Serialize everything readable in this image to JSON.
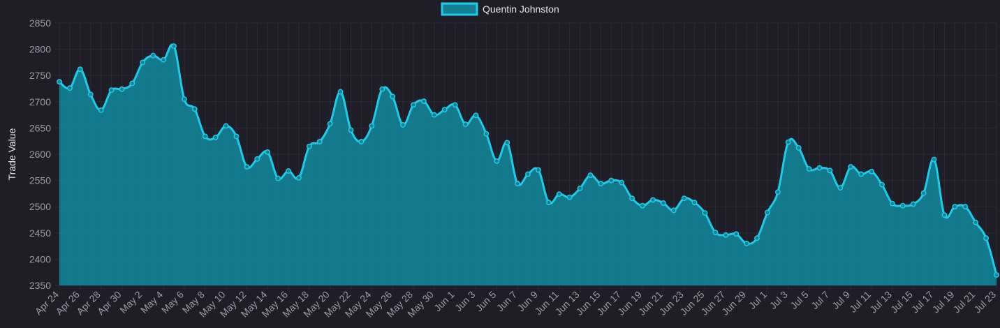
{
  "chart_data": {
    "type": "area",
    "ylabel": "Trade Value",
    "ylim": [
      2350,
      2850
    ],
    "yticks": [
      2350,
      2400,
      2450,
      2500,
      2550,
      2600,
      2650,
      2700,
      2750,
      2800,
      2850
    ],
    "grid": true,
    "legend_position": "top-center",
    "colors": {
      "line": "#1ecbe8",
      "fill": "#137f93",
      "background": "#1f1e27",
      "grid": "#2c2b35"
    },
    "x": [
      "Apr 24",
      "Apr 25",
      "Apr 26",
      "Apr 27",
      "Apr 28",
      "Apr 29",
      "Apr 30",
      "May 1",
      "May 2",
      "May 3",
      "May 4",
      "May 5",
      "May 6",
      "May 7",
      "May 8",
      "May 9",
      "May 10",
      "May 11",
      "May 12",
      "May 13",
      "May 14",
      "May 15",
      "May 16",
      "May 17",
      "May 18",
      "May 19",
      "May 20",
      "May 21",
      "May 22",
      "May 23",
      "May 24",
      "May 25",
      "May 26",
      "May 27",
      "May 28",
      "May 29",
      "May 30",
      "May 31",
      "Jun 1",
      "Jun 2",
      "Jun 3",
      "Jun 4",
      "Jun 5",
      "Jun 6",
      "Jun 7",
      "Jun 8",
      "Jun 9",
      "Jun 10",
      "Jun 11",
      "Jun 12",
      "Jun 13",
      "Jun 14",
      "Jun 15",
      "Jun 16",
      "Jun 17",
      "Jun 18",
      "Jun 19",
      "Jun 20",
      "Jun 21",
      "Jun 22",
      "Jun 23",
      "Jun 24",
      "Jun 25",
      "Jun 26",
      "Jun 27",
      "Jun 28",
      "Jun 29",
      "Jun 30",
      "Jul 1",
      "Jul 2",
      "Jul 3",
      "Jul 4",
      "Jul 5",
      "Jul 6",
      "Jul 7",
      "Jul 8",
      "Jul 9",
      "Jul 10",
      "Jul 11",
      "Jul 12",
      "Jul 13",
      "Jul 14",
      "Jul 15",
      "Jul 16",
      "Jul 17",
      "Jul 18",
      "Jul 19",
      "Jul 20",
      "Jul 21",
      "Jul 22",
      "Jul 23"
    ],
    "xtick_labels": [
      "Apr 24",
      "Apr 26",
      "Apr 28",
      "Apr 30",
      "May 2",
      "May 4",
      "May 6",
      "May 8",
      "May 10",
      "May 12",
      "May 14",
      "May 16",
      "May 18",
      "May 20",
      "May 22",
      "May 24",
      "May 26",
      "May 28",
      "May 30",
      "Jun 1",
      "Jun 3",
      "Jun 5",
      "Jun 7",
      "Jun 9",
      "Jun 11",
      "Jun 13",
      "Jun 15",
      "Jun 17",
      "Jun 19",
      "Jun 21",
      "Jun 23",
      "Jun 25",
      "Jun 27",
      "Jun 29",
      "Jul 1",
      "Jul 3",
      "Jul 5",
      "Jul 7",
      "Jul 9",
      "Jul 11",
      "Jul 13",
      "Jul 15",
      "Jul 17",
      "Jul 19",
      "Jul 21",
      "Jul 23"
    ],
    "series": [
      {
        "name": "Quentin Johnston",
        "values": [
          2738,
          2726,
          2762,
          2714,
          2684,
          2722,
          2724,
          2735,
          2775,
          2788,
          2780,
          2806,
          2705,
          2686,
          2634,
          2632,
          2654,
          2634,
          2576,
          2591,
          2604,
          2554,
          2568,
          2555,
          2615,
          2624,
          2658,
          2719,
          2646,
          2624,
          2654,
          2724,
          2710,
          2656,
          2694,
          2701,
          2675,
          2685,
          2694,
          2657,
          2674,
          2639,
          2587,
          2622,
          2544,
          2562,
          2570,
          2508,
          2524,
          2518,
          2535,
          2560,
          2544,
          2550,
          2546,
          2516,
          2502,
          2513,
          2507,
          2493,
          2516,
          2508,
          2488,
          2451,
          2446,
          2448,
          2430,
          2440,
          2489,
          2528,
          2623,
          2612,
          2572,
          2574,
          2569,
          2536,
          2576,
          2562,
          2567,
          2542,
          2506,
          2502,
          2505,
          2526,
          2590,
          2484,
          2500,
          2500,
          2470,
          2440,
          2370
        ]
      }
    ]
  }
}
